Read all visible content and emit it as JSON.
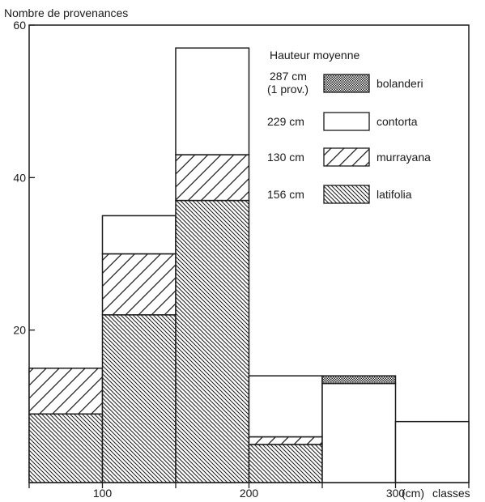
{
  "chart_data": {
    "type": "bar",
    "stacked": true,
    "ylabel": "Nombre de provenances",
    "xlabel": "classes",
    "x_unit": "(cm)",
    "ylim": [
      0,
      60
    ],
    "xlim": [
      50,
      350
    ],
    "yticks": [
      20,
      40,
      60
    ],
    "xticks": [
      {
        "value": 100,
        "label": "100"
      },
      {
        "value": 200,
        "label": "200"
      },
      {
        "value": 300,
        "label": "300"
      }
    ],
    "bin_edges": [
      50,
      100,
      150,
      200,
      250,
      300,
      350
    ],
    "series": [
      {
        "name": "latifolia",
        "pattern": "dense-hatch",
        "mean_height": "156 cm",
        "values": [
          9,
          22,
          37,
          5,
          0,
          0
        ]
      },
      {
        "name": "murrayana",
        "pattern": "sparse-hatch",
        "mean_height": "130 cm",
        "values": [
          6,
          8,
          6,
          1,
          0,
          0
        ]
      },
      {
        "name": "contorta",
        "pattern": "white",
        "mean_height": "229 cm",
        "values": [
          0,
          5,
          14,
          8,
          13,
          8
        ]
      },
      {
        "name": "bolanderi",
        "pattern": "crosshatch",
        "mean_height": "287 cm",
        "mean_height_note": "(1 prov.)",
        "values": [
          0,
          0,
          0,
          0,
          1,
          0
        ]
      }
    ],
    "legend": {
      "title": "Hauteur moyenne",
      "placement": "top-right",
      "order": [
        "bolanderi",
        "contorta",
        "murrayana",
        "latifolia"
      ]
    },
    "grid": false
  },
  "colors": {
    "ink": "#1a1a1a",
    "background": "#ffffff"
  }
}
